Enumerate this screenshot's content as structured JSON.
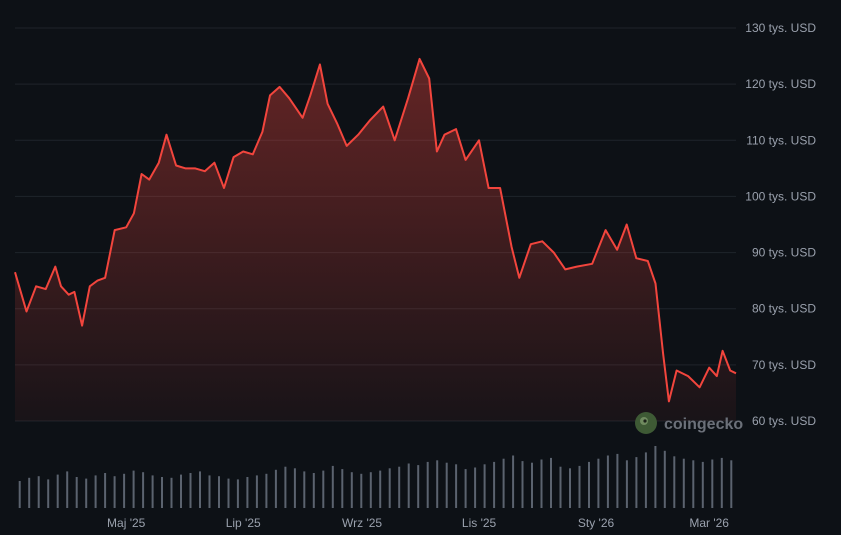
{
  "chart_data": {
    "type": "area",
    "title": "",
    "xlabel": "",
    "ylabel": "",
    "ylim": [
      55000,
      132000
    ],
    "ytick_values": [
      60000,
      70000,
      80000,
      90000,
      100000,
      110000,
      120000,
      130000
    ],
    "ytick_labels": [
      "60 tys. USD",
      "70 tys. USD",
      "80 tys. USD",
      "90 tys. USD",
      "100 tys. USD",
      "110 tys. USD",
      "120 tys. USD",
      "130 tys. USD"
    ],
    "xtick_dates": [
      "2025-05-01",
      "2025-07-01",
      "2025-09-01",
      "2025-11-01",
      "2026-01-01",
      "2026-03-01"
    ],
    "xtick_labels": [
      "Maj '25",
      "Lip '25",
      "Wrz '25",
      "Lis '25",
      "Sty '26",
      "Mar '26"
    ],
    "x_range": [
      "2025-03-04",
      "2026-03-15"
    ],
    "grid": true,
    "series": [
      {
        "color": "#f2453d",
        "x": [
          "2025-03-04",
          "2025-03-10",
          "2025-03-15",
          "2025-03-20",
          "2025-03-25",
          "2025-03-28",
          "2025-04-01",
          "2025-04-04",
          "2025-04-08",
          "2025-04-12",
          "2025-04-16",
          "2025-04-20",
          "2025-04-25",
          "2025-05-01",
          "2025-05-05",
          "2025-05-09",
          "2025-05-13",
          "2025-05-18",
          "2025-05-22",
          "2025-05-27",
          "2025-06-01",
          "2025-06-06",
          "2025-06-11",
          "2025-06-16",
          "2025-06-21",
          "2025-06-26",
          "2025-07-01",
          "2025-07-06",
          "2025-07-11",
          "2025-07-15",
          "2025-07-20",
          "2025-07-25",
          "2025-08-01",
          "2025-08-05",
          "2025-08-10",
          "2025-08-14",
          "2025-08-19",
          "2025-08-24",
          "2025-08-30",
          "2025-09-05",
          "2025-09-12",
          "2025-09-18",
          "2025-09-25",
          "2025-10-01",
          "2025-10-06",
          "2025-10-10",
          "2025-10-14",
          "2025-10-20",
          "2025-10-25",
          "2025-11-01",
          "2025-11-06",
          "2025-11-12",
          "2025-11-18",
          "2025-11-22",
          "2025-11-28",
          "2025-12-04",
          "2025-12-10",
          "2025-12-16",
          "2025-12-22",
          "2025-12-30",
          "2026-01-06",
          "2026-01-12",
          "2026-01-17",
          "2026-01-22",
          "2026-01-28",
          "2026-02-01",
          "2026-02-05",
          "2026-02-08",
          "2026-02-12",
          "2026-02-18",
          "2026-02-24",
          "2026-03-01",
          "2026-03-05",
          "2026-03-08",
          "2026-03-12",
          "2026-03-15"
        ],
        "y": [
          86500,
          79500,
          84000,
          83500,
          87500,
          84000,
          82500,
          83000,
          77000,
          84000,
          85000,
          85500,
          94000,
          94500,
          97000,
          104000,
          103000,
          106000,
          111000,
          105500,
          105000,
          105000,
          104500,
          106000,
          101500,
          107000,
          108000,
          107500,
          111500,
          118000,
          119500,
          117500,
          114000,
          118000,
          123500,
          116500,
          113000,
          109000,
          111000,
          113500,
          116000,
          110000,
          117500,
          124500,
          121000,
          108000,
          111000,
          112000,
          106500,
          110000,
          101500,
          101500,
          91000,
          85500,
          91500,
          92000,
          90000,
          87000,
          87500,
          88000,
          94000,
          90500,
          95000,
          89000,
          88500,
          84500,
          72000,
          63500,
          69000,
          68000,
          66000,
          69500,
          68000,
          72500,
          69000,
          68500
        ]
      }
    ],
    "volume": [
      34,
      38,
      40,
      36,
      42,
      46,
      39,
      37,
      41,
      44,
      40,
      43,
      47,
      45,
      41,
      39,
      38,
      42,
      44,
      46,
      41,
      40,
      37,
      36,
      39,
      41,
      43,
      48,
      52,
      50,
      46,
      44,
      47,
      53,
      49,
      45,
      43,
      45,
      47,
      50,
      52,
      56,
      54,
      58,
      60,
      57,
      55,
      49,
      51,
      55,
      58,
      62,
      66,
      59,
      57,
      61,
      63,
      52,
      50,
      53,
      58,
      62,
      66,
      68,
      60,
      64,
      70,
      78,
      72,
      65,
      62,
      60,
      58,
      61,
      63,
      60
    ]
  },
  "watermark": {
    "text": "coingecko"
  },
  "colors": {
    "background": "#0d1116",
    "line": "#f2453d",
    "volume": "#5b636f",
    "grid": "#1f242b"
  }
}
